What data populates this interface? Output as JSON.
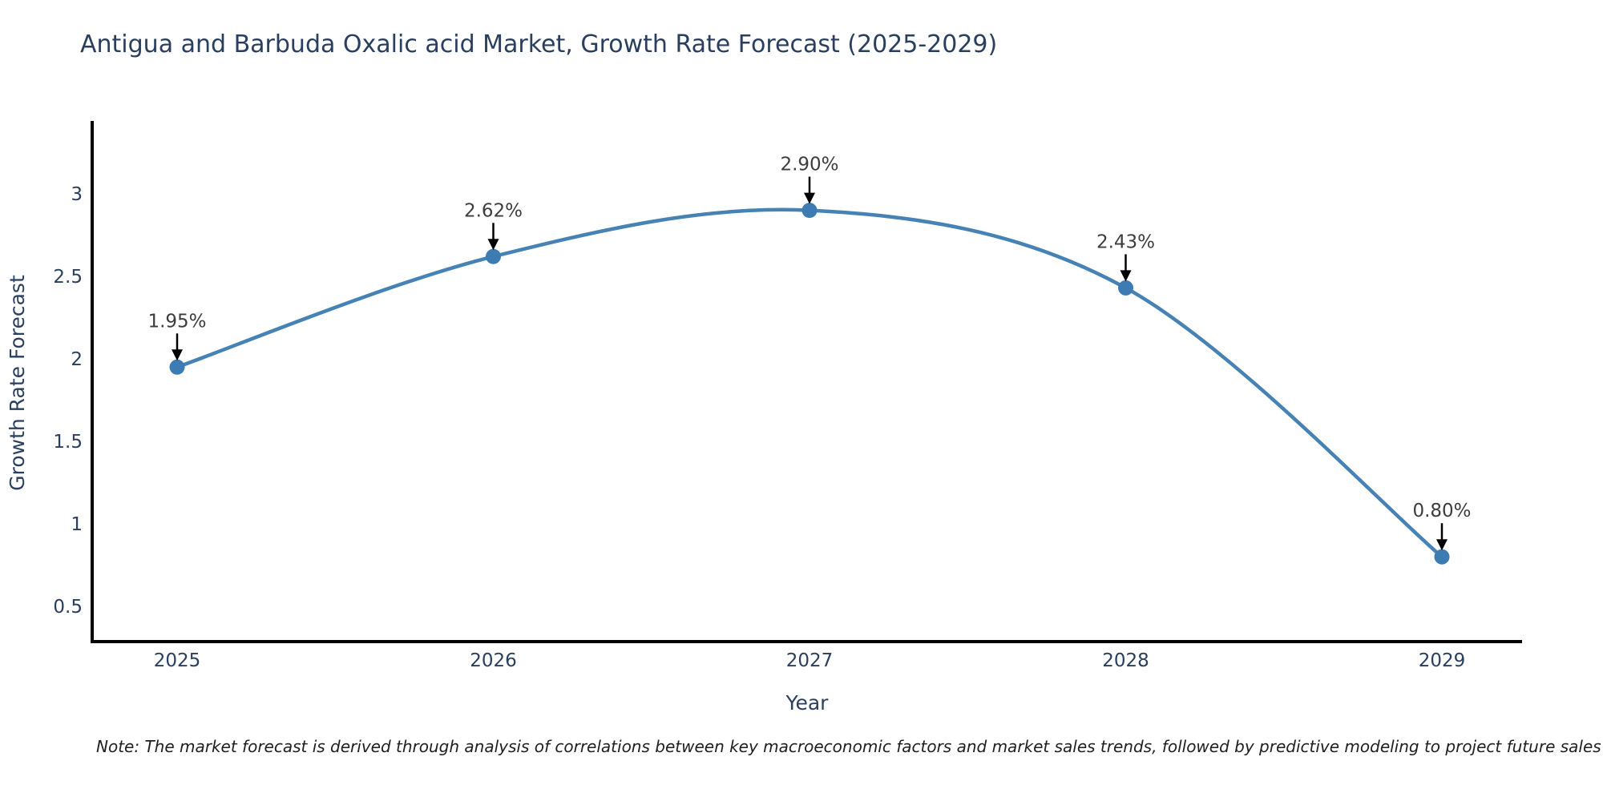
{
  "note": "Note: The market forecast is derived through analysis of correlations between key macroeconomic factors and market sales trends, followed by predictive modeling to project future sales",
  "chart_data": {
    "type": "line",
    "line_shape": "spline",
    "title": "Antigua and Barbuda Oxalic acid Market, Growth Rate Forecast (2025-2029)",
    "xlabel": "Year",
    "ylabel": "Growth Rate Forecast",
    "categories": [
      "2025",
      "2026",
      "2027",
      "2028",
      "2029"
    ],
    "values": [
      1.95,
      2.62,
      2.9,
      2.43,
      0.8
    ],
    "point_labels": [
      "1.95%",
      "2.62%",
      "2.90%",
      "2.43%",
      "0.80%"
    ],
    "yticks": [
      "0.5",
      "1",
      "1.5",
      "2",
      "2.5",
      "3"
    ],
    "ytick_values": [
      0.5,
      1,
      1.5,
      2,
      2.5,
      3
    ],
    "ylim": [
      0.28,
      3.43
    ],
    "grid": false,
    "legend": "none",
    "annotation_style": "down-arrow-to-point",
    "colors": {
      "line": "#4682b4",
      "marker": "#3c7cb3",
      "axis_line": "#000000",
      "tick_text": "#2a3f5f",
      "annotation_text": "#3d3d3d",
      "arrow": "#000000"
    }
  }
}
